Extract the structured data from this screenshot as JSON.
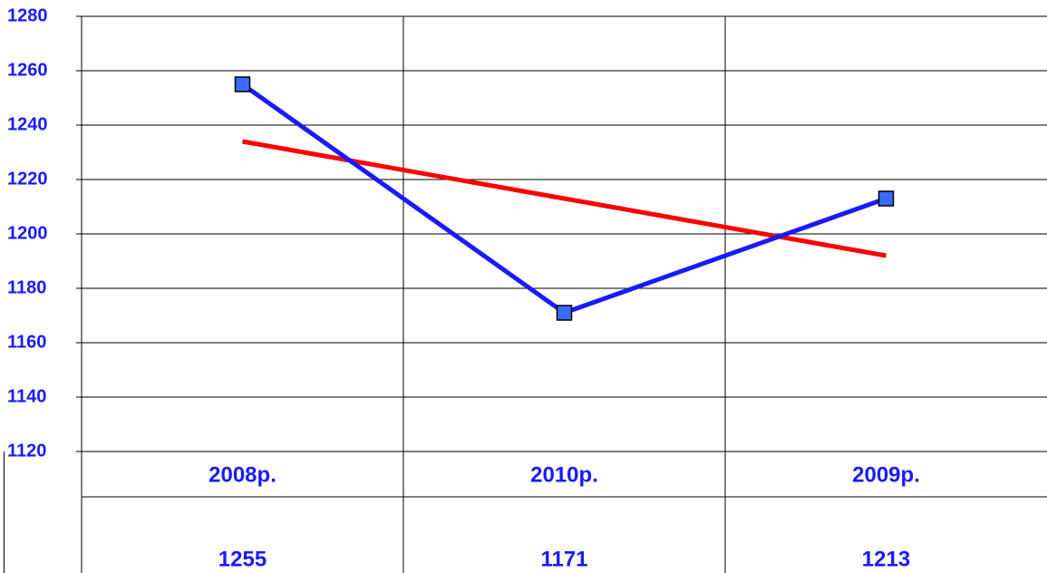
{
  "chart_data": {
    "type": "line",
    "categories": [
      "2008р.",
      "2010р.",
      "2009р."
    ],
    "series": [
      {
        "color": "#1a1aff",
        "marker_color": "#3a6bff",
        "values": [
          1255,
          1171,
          1213
        ]
      },
      {
        "color": "#ff0000",
        "values": [
          1234,
          1213,
          1192
        ]
      }
    ],
    "ylim": [
      1120,
      1280
    ],
    "yticks": [
      1120,
      1140,
      1160,
      1180,
      1200,
      1220,
      1240,
      1260,
      1280
    ],
    "grid": true
  }
}
